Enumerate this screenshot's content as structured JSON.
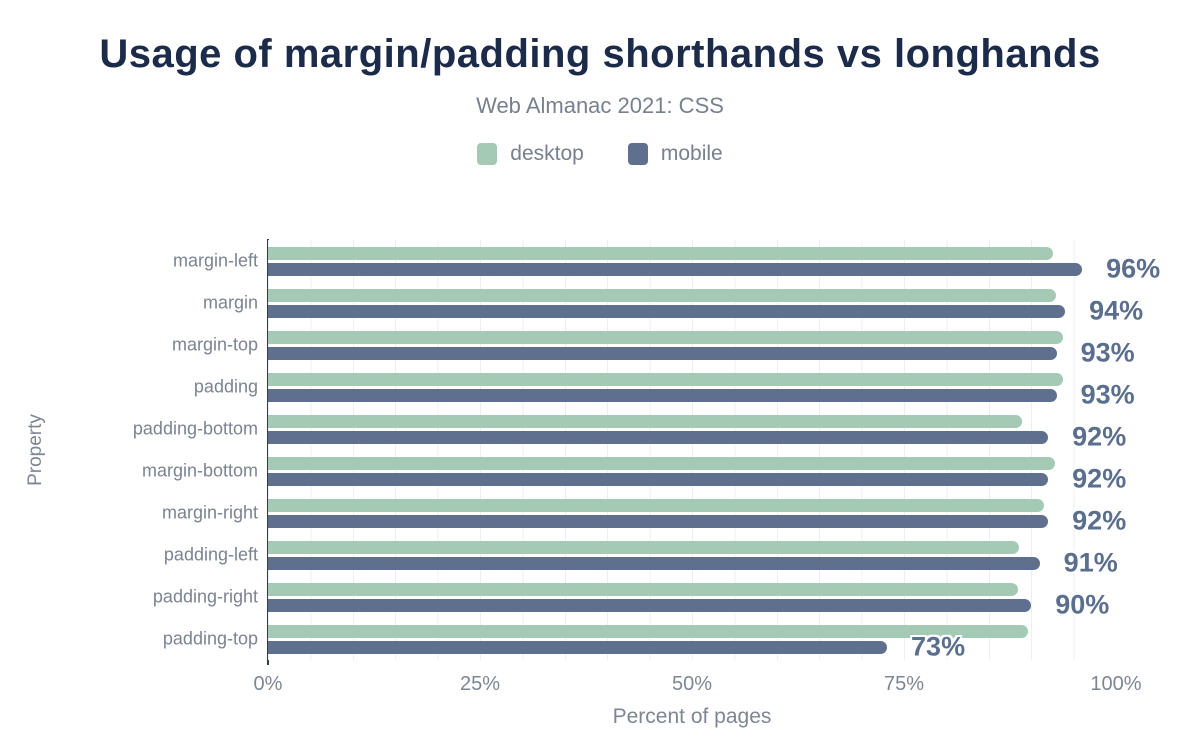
{
  "title": "Usage of margin/padding shorthands vs longhands",
  "subtitle": "Web Almanac 2021: CSS",
  "legend": {
    "items": [
      {
        "label": "desktop",
        "color": "#a4c9b5"
      },
      {
        "label": "mobile",
        "color": "#5e708e"
      }
    ]
  },
  "colors": {
    "title": "#1c2b4a",
    "subtitle_gray": "#77808e",
    "axis_text_gray": "#7e8694",
    "category_gray": "#7b8492",
    "value_label": "#5a6e8e",
    "desktop_bar": "#a4c9b5",
    "mobile_bar": "#5e708e",
    "axis_line": "#333a49",
    "gridline": "#efeff2"
  },
  "chart_data": {
    "type": "bar",
    "orientation": "horizontal",
    "title": "Usage of margin/padding shorthands vs longhands",
    "subtitle": "Web Almanac 2021: CSS",
    "xlabel": "Percent of pages",
    "ylabel": "Property",
    "xlim": [
      0,
      100
    ],
    "x_ticks": [
      {
        "value": 0,
        "label": "0%"
      },
      {
        "value": 25,
        "label": "25%"
      },
      {
        "value": 50,
        "label": "50%"
      },
      {
        "value": 75,
        "label": "75%"
      },
      {
        "value": 100,
        "label": "100%"
      }
    ],
    "grid": "faint vertical minor gridlines every 5%",
    "legend_position": "top",
    "categories": [
      "margin-left",
      "margin",
      "margin-top",
      "padding",
      "padding-bottom",
      "margin-bottom",
      "margin-right",
      "padding-left",
      "padding-right",
      "padding-top"
    ],
    "series": [
      {
        "name": "desktop",
        "color": "#a4c9b5",
        "values": [
          92.6,
          92.9,
          93.7,
          93.8,
          88.9,
          92.8,
          91.5,
          88.6,
          88.5,
          89.6
        ]
      },
      {
        "name": "mobile",
        "color": "#5e708e",
        "values": [
          96,
          94,
          93,
          93,
          92,
          92,
          92,
          91,
          90,
          73
        ]
      }
    ],
    "value_labels": [
      "96%",
      "94%",
      "93%",
      "93%",
      "92%",
      "92%",
      "92%",
      "91%",
      "90%",
      "73%"
    ],
    "value_labels_series": "mobile"
  }
}
